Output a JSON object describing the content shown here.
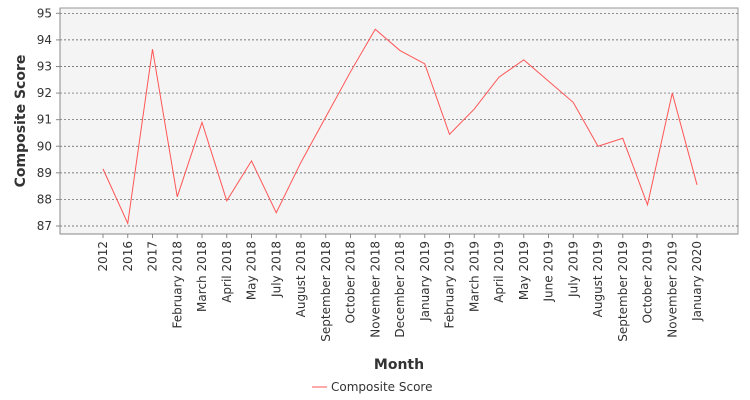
{
  "chart_data": {
    "type": "line",
    "xlabel": "Month",
    "ylabel": "Composite Score",
    "ylim": [
      86.7,
      95.2
    ],
    "yticks": [
      87,
      88,
      89,
      90,
      91,
      92,
      93,
      94,
      95
    ],
    "grid": true,
    "legend_position": "bottom-center",
    "categories": [
      "2012",
      "2016",
      "2017",
      "February 2018",
      "March 2018",
      "April 2018",
      "May 2018",
      "July 2018",
      "August 2018",
      "September 2018",
      "October 2018",
      "November 2018",
      "December 2018",
      "January 2019",
      "February 2019",
      "March 2019",
      "April 2019",
      "May 2019",
      "June 2019",
      "July 2019",
      "August 2019",
      "September 2019",
      "October 2019",
      "November 2019",
      "January 2020"
    ],
    "series": [
      {
        "name": "Composite Score",
        "color": "#ff5555",
        "values": [
          89.15,
          87.1,
          93.65,
          88.1,
          90.9,
          87.95,
          89.45,
          87.5,
          89.4,
          91.1,
          92.8,
          94.4,
          93.6,
          93.1,
          90.45,
          91.4,
          92.6,
          93.25,
          92.45,
          91.65,
          90.0,
          90.3,
          87.8,
          92.0,
          88.55
        ]
      }
    ]
  }
}
